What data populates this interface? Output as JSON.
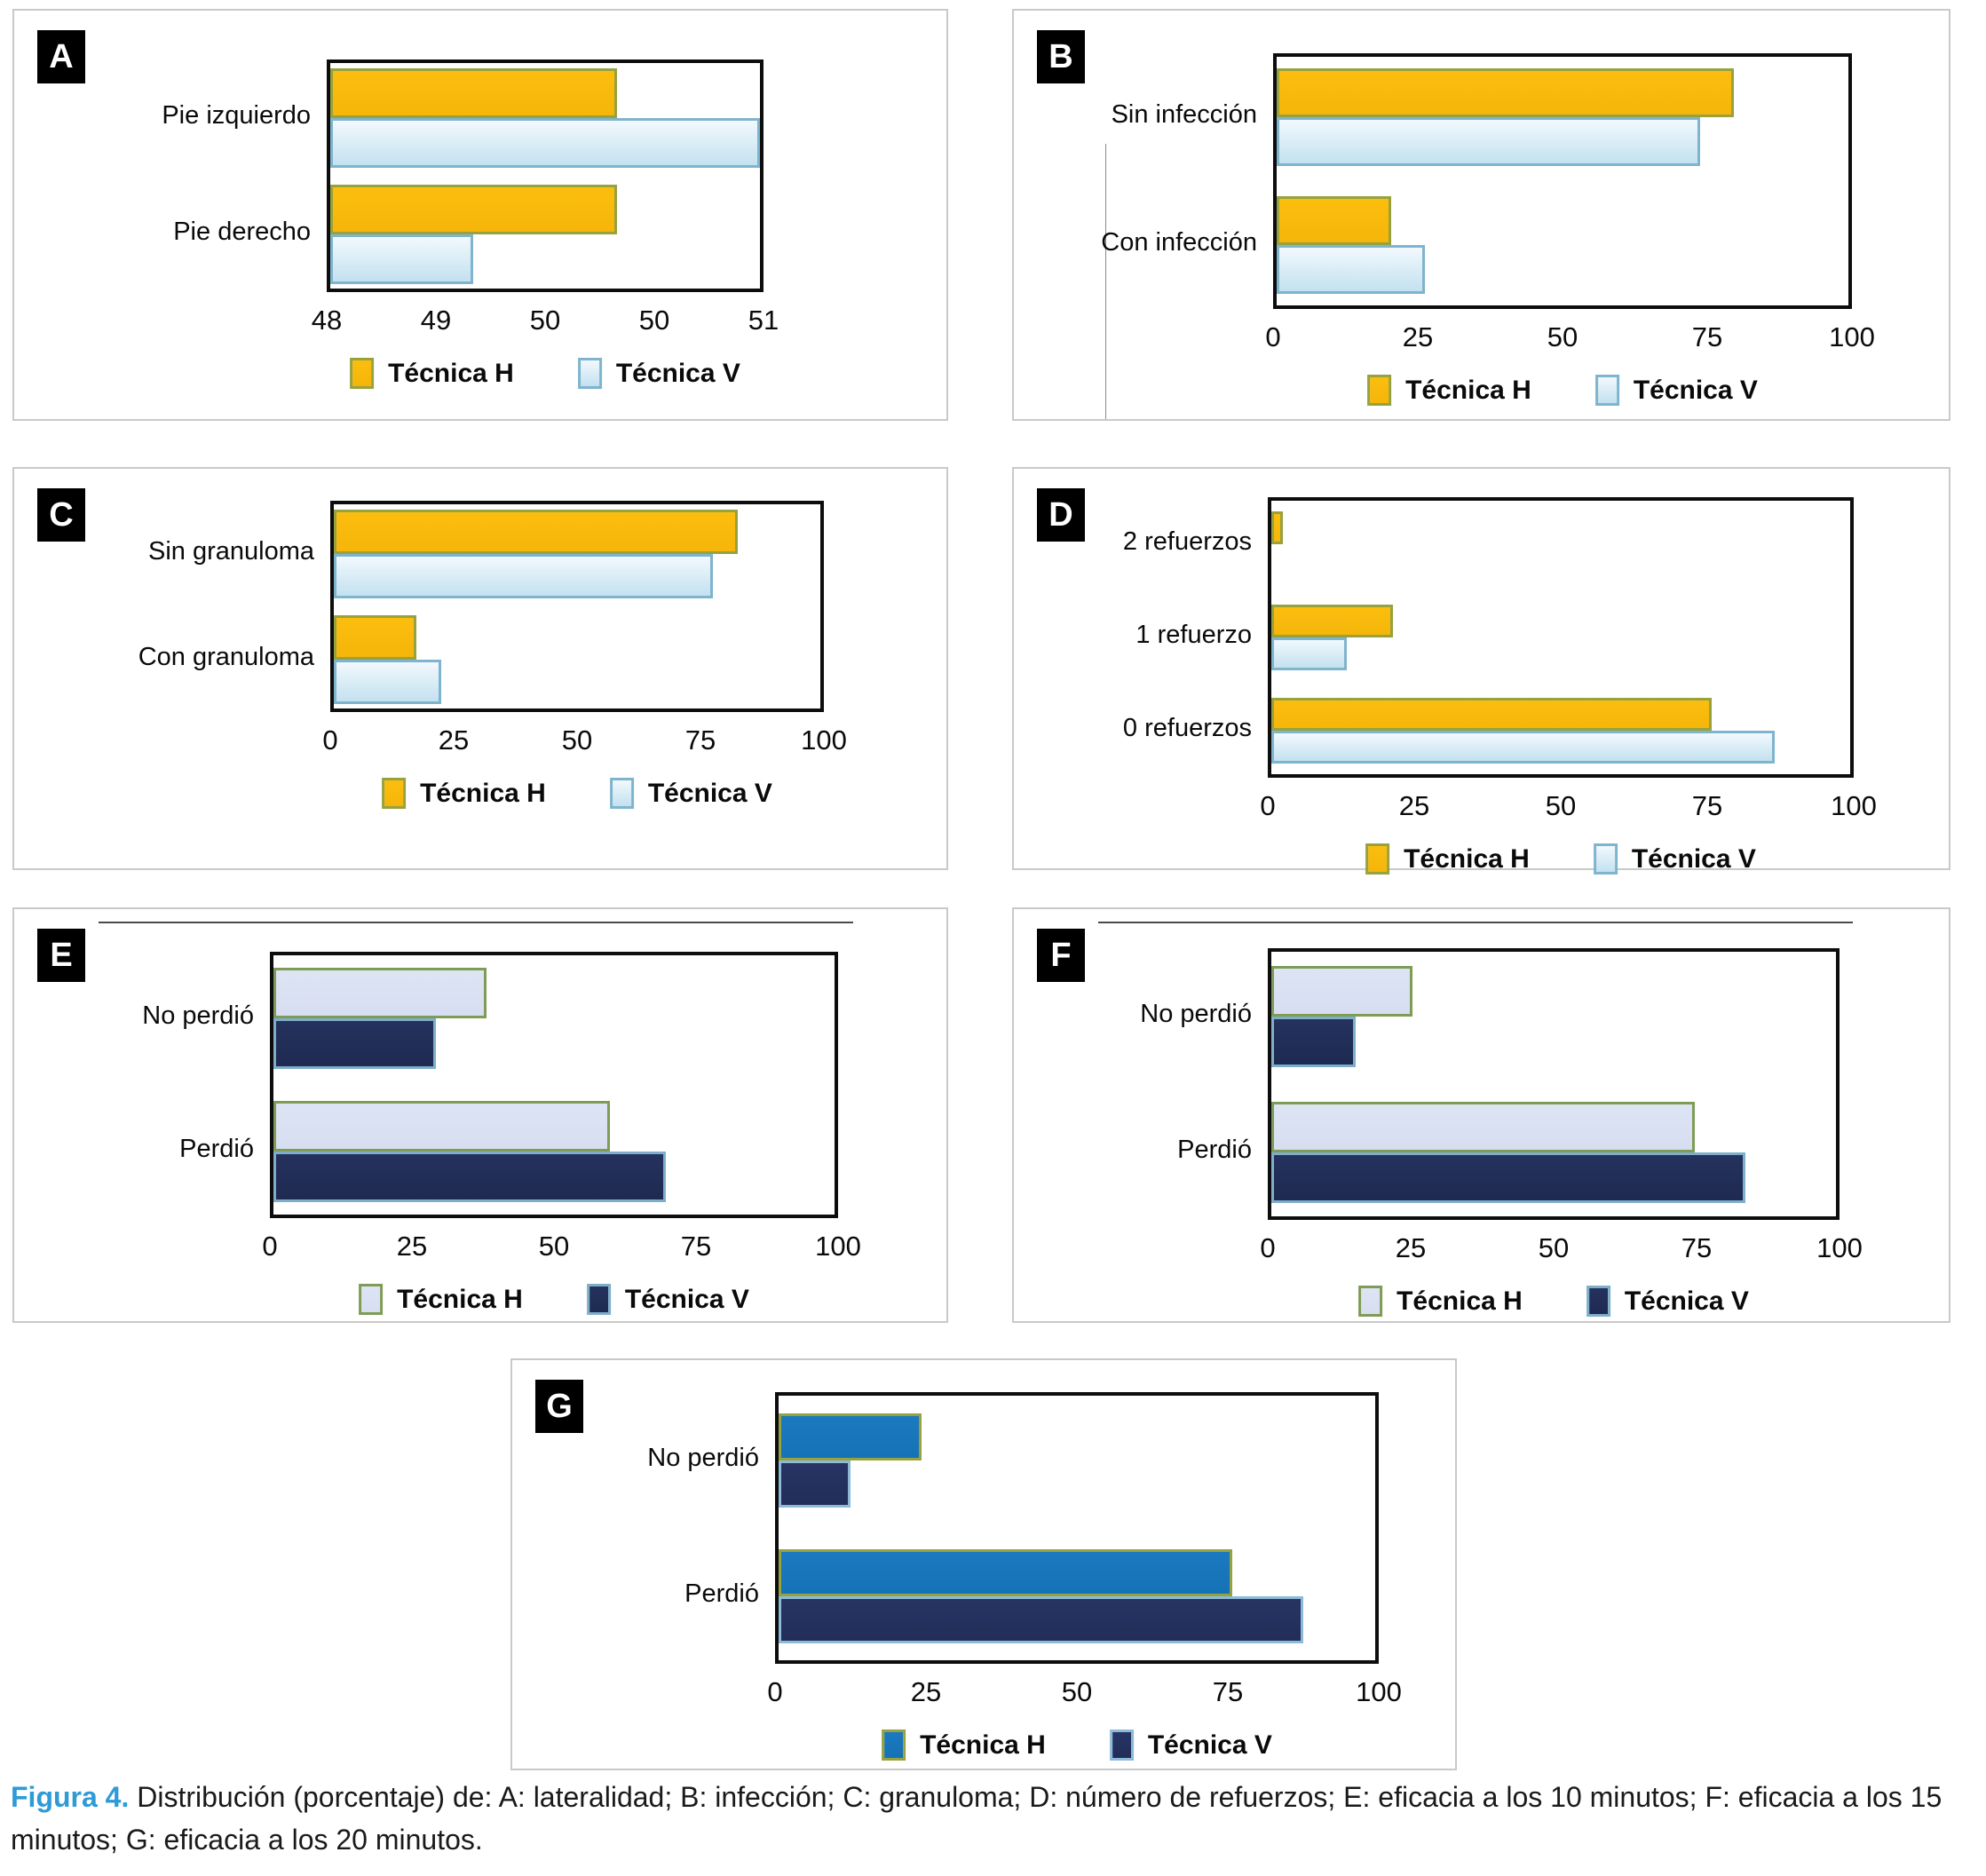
{
  "figure": {
    "caption_label": "Figura 4.",
    "caption_text": " Distribución (porcentaje) de: A: lateralidad; B: infección; C: granuloma; D: número de refuerzos; E: eficacia a los 10 minutos; F: eficacia a los 15 minutos; G: eficacia a los 20 minutos.",
    "caption_accent_color": "#2E9BD6"
  },
  "chart_data": [
    {
      "panel": "A",
      "type": "bar",
      "orientation": "horizontal",
      "measure": "lateralidad",
      "categories": [
        "Pie izquierdo",
        "Pie derecho"
      ],
      "series": [
        {
          "name": "Técnica H",
          "values": [
            50,
            50
          ]
        },
        {
          "name": "Técnica V",
          "values": [
            51,
            49
          ]
        }
      ],
      "xlim": [
        48,
        51
      ],
      "xticks": [
        "48",
        "49",
        "50",
        "50",
        "51"
      ],
      "grid": false,
      "legend_position": "bottom",
      "style": {
        "h": {
          "fill_top": "#FBBE0E",
          "fill_bottom": "#F5B50A",
          "border": "#97A23F"
        },
        "v": {
          "fill_top": "#F2F9FD",
          "fill_bottom": "#C3E1F0",
          "border": "#7FB4CE"
        }
      }
    },
    {
      "panel": "B",
      "type": "bar",
      "orientation": "horizontal",
      "measure": "infección",
      "categories": [
        "Sin infección",
        "Con infección"
      ],
      "series": [
        {
          "name": "Técnica H",
          "values": [
            80,
            20
          ]
        },
        {
          "name": "Técnica V",
          "values": [
            74,
            26
          ]
        }
      ],
      "xlim": [
        0,
        100
      ],
      "xticks": [
        "0",
        "25",
        "50",
        "75",
        "100"
      ],
      "grid": false,
      "legend_position": "bottom",
      "style": {
        "h": {
          "fill_top": "#FBBE0E",
          "fill_bottom": "#F5B50A",
          "border": "#97A23F"
        },
        "v": {
          "fill_top": "#F2F9FD",
          "fill_bottom": "#C3E1F0",
          "border": "#7FB4CE"
        }
      }
    },
    {
      "panel": "C",
      "type": "bar",
      "orientation": "horizontal",
      "measure": "granuloma",
      "categories": [
        "Sin granuloma",
        "Con granuloma"
      ],
      "series": [
        {
          "name": "Técnica H",
          "values": [
            83,
            17
          ]
        },
        {
          "name": "Técnica V",
          "values": [
            78,
            22
          ]
        }
      ],
      "xlim": [
        0,
        100
      ],
      "xticks": [
        "0",
        "25",
        "50",
        "75",
        "100"
      ],
      "grid": false,
      "legend_position": "bottom",
      "style": {
        "h": {
          "fill_top": "#FBBE0E",
          "fill_bottom": "#F5B50A",
          "border": "#97A23F"
        },
        "v": {
          "fill_top": "#F2F9FD",
          "fill_bottom": "#C3E1F0",
          "border": "#7FB4CE"
        }
      }
    },
    {
      "panel": "D",
      "type": "bar",
      "orientation": "horizontal",
      "measure": "número de refuerzos",
      "categories": [
        "2 refuerzos",
        "1 refuerzo",
        "0 refuerzos"
      ],
      "series": [
        {
          "name": "Técnica H",
          "values": [
            2,
            21,
            76
          ]
        },
        {
          "name": "Técnica V",
          "values": [
            0,
            13,
            87
          ]
        }
      ],
      "xlim": [
        0,
        100
      ],
      "xticks": [
        "0",
        "25",
        "50",
        "75",
        "100"
      ],
      "grid": false,
      "legend_position": "bottom",
      "style": {
        "h": {
          "fill_top": "#FBBE0E",
          "fill_bottom": "#F5B50A",
          "border": "#97A23F"
        },
        "v": {
          "fill_top": "#F2F9FD",
          "fill_bottom": "#C3E1F0",
          "border": "#7FB4CE"
        }
      }
    },
    {
      "panel": "E",
      "type": "bar",
      "orientation": "horizontal",
      "measure": "eficacia a los 10 minutos",
      "categories": [
        "No perdió",
        "Perdió"
      ],
      "series": [
        {
          "name": "Técnica H",
          "values": [
            38,
            60
          ]
        },
        {
          "name": "Técnica V",
          "values": [
            29,
            70
          ]
        }
      ],
      "xlim": [
        0,
        100
      ],
      "xticks": [
        "0",
        "25",
        "50",
        "75",
        "100"
      ],
      "grid": false,
      "legend_position": "bottom",
      "style": {
        "h": {
          "fill_top": "#DDE4F4",
          "fill_bottom": "#D7DEF1",
          "border": "#7E9C55"
        },
        "v": {
          "fill_top": "#25325E",
          "fill_bottom": "#1E2A50",
          "border": "#7FAECB"
        }
      }
    },
    {
      "panel": "F",
      "type": "bar",
      "orientation": "horizontal",
      "measure": "eficacia a los 15 minutos",
      "categories": [
        "No perdió",
        "Perdió"
      ],
      "series": [
        {
          "name": "Técnica H",
          "values": [
            25,
            75
          ]
        },
        {
          "name": "Técnica V",
          "values": [
            15,
            84
          ]
        }
      ],
      "xlim": [
        0,
        100
      ],
      "xticks": [
        "0",
        "25",
        "50",
        "75",
        "100"
      ],
      "grid": false,
      "legend_position": "bottom",
      "style": {
        "h": {
          "fill_top": "#DDE4F4",
          "fill_bottom": "#D7DEF1",
          "border": "#7E9C55"
        },
        "v": {
          "fill_top": "#25325E",
          "fill_bottom": "#1E2A50",
          "border": "#7FAECB"
        }
      }
    },
    {
      "panel": "G",
      "type": "bar",
      "orientation": "horizontal",
      "measure": "eficacia a los 20 minutos",
      "categories": [
        "No perdió",
        "Perdió"
      ],
      "series": [
        {
          "name": "Técnica H",
          "values": [
            24,
            76
          ]
        },
        {
          "name": "Técnica V",
          "values": [
            12,
            88
          ]
        }
      ],
      "xlim": [
        0,
        100
      ],
      "xticks": [
        "0",
        "25",
        "50",
        "75",
        "100"
      ],
      "grid": false,
      "legend_position": "bottom",
      "style": {
        "h": {
          "fill_top": "#1B79BF",
          "fill_bottom": "#1672B6",
          "border": "#97A23F"
        },
        "v": {
          "fill_top": "#273464",
          "fill_bottom": "#222D58",
          "border": "#8CBAD8"
        }
      }
    }
  ]
}
